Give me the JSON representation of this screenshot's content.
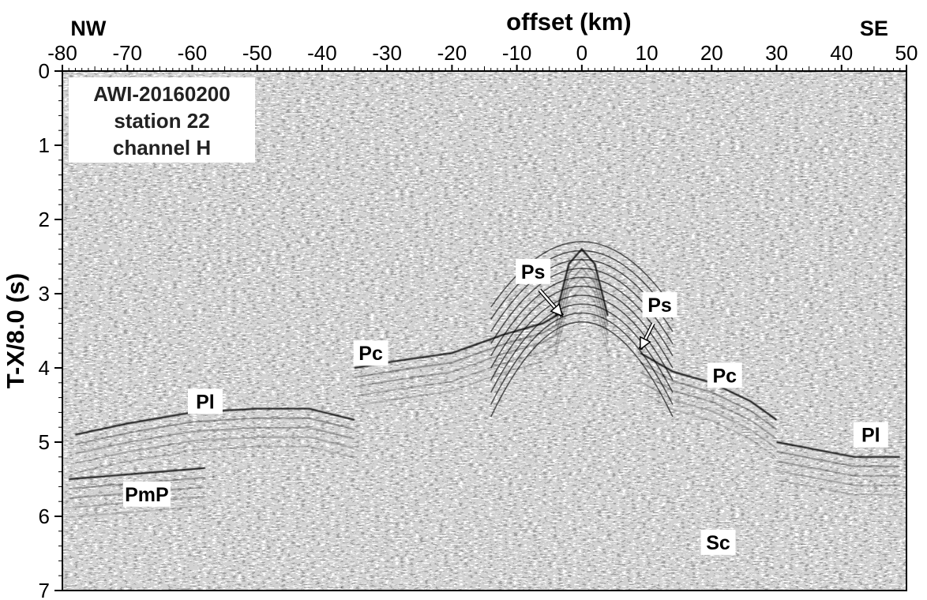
{
  "chart_data": {
    "type": "seismic-record-section",
    "xlabel": "offset (km)",
    "ylabel": "T-X/8.0 (s)",
    "xlim": [
      -80,
      50
    ],
    "ylim": [
      0,
      7
    ],
    "y_inverted": true,
    "x_ticks": [
      "-80",
      "-70",
      "-60",
      "-50",
      "-40",
      "-30",
      "-20",
      "-10",
      "0",
      "10",
      "20",
      "30",
      "40",
      "50"
    ],
    "x_tick_values": [
      -80,
      -70,
      -60,
      -50,
      -40,
      -30,
      -20,
      -10,
      0,
      10,
      20,
      30,
      40,
      50
    ],
    "y_ticks": [
      "0",
      "1",
      "2",
      "3",
      "4",
      "5",
      "6",
      "7"
    ],
    "y_tick_values": [
      0,
      1,
      2,
      3,
      4,
      5,
      6,
      7
    ],
    "direction_labels": {
      "left": "NW",
      "right": "SE"
    },
    "info_box": [
      "AWI-20160200",
      "station 22",
      "channel H"
    ],
    "phase_labels": [
      {
        "text": "Ps",
        "x": -7.5,
        "y": 2.7
      },
      {
        "text": "Ps",
        "x": 12,
        "y": 3.15
      },
      {
        "text": "Pc",
        "x": -32.5,
        "y": 3.8
      },
      {
        "text": "Pc",
        "x": 22,
        "y": 4.1
      },
      {
        "text": "Pl",
        "x": -58,
        "y": 4.45
      },
      {
        "text": "Pl",
        "x": 44.5,
        "y": 4.9
      },
      {
        "text": "PmP",
        "x": -67,
        "y": 5.7
      },
      {
        "text": "Sc",
        "x": 21,
        "y": 6.35
      }
    ],
    "arrows": [
      {
        "from": [
          -6.5,
          2.95
        ],
        "to": [
          -3.0,
          3.3
        ]
      },
      {
        "from": [
          11,
          3.4
        ],
        "to": [
          9,
          3.75
        ]
      }
    ],
    "arrivals": [
      {
        "name": "Pc-west",
        "points": [
          [
            -35,
            4.0
          ],
          [
            -28,
            3.9
          ],
          [
            -20,
            3.8
          ],
          [
            -12,
            3.55
          ],
          [
            -6,
            3.4
          ],
          [
            -3,
            3.25
          ]
        ]
      },
      {
        "name": "Pc-east",
        "points": [
          [
            9,
            3.8
          ],
          [
            14,
            4.05
          ],
          [
            20,
            4.2
          ],
          [
            26,
            4.45
          ],
          [
            30,
            4.7
          ]
        ]
      },
      {
        "name": "Pl-west",
        "points": [
          [
            -78,
            4.9
          ],
          [
            -70,
            4.75
          ],
          [
            -60,
            4.6
          ],
          [
            -50,
            4.55
          ],
          [
            -42,
            4.55
          ],
          [
            -35,
            4.7
          ]
        ]
      },
      {
        "name": "Pl-east",
        "points": [
          [
            30,
            5.0
          ],
          [
            36,
            5.1
          ],
          [
            42,
            5.2
          ],
          [
            49,
            5.2
          ]
        ]
      },
      {
        "name": "PmP-west",
        "points": [
          [
            -79,
            5.5
          ],
          [
            -72,
            5.45
          ],
          [
            -65,
            5.4
          ],
          [
            -58,
            5.35
          ]
        ]
      },
      {
        "name": "direct-arrival-apex",
        "points": [
          [
            -4,
            3.3
          ],
          [
            -2,
            2.6
          ],
          [
            0,
            2.4
          ],
          [
            2,
            2.6
          ],
          [
            4,
            3.3
          ]
        ]
      }
    ],
    "grid": false
  }
}
